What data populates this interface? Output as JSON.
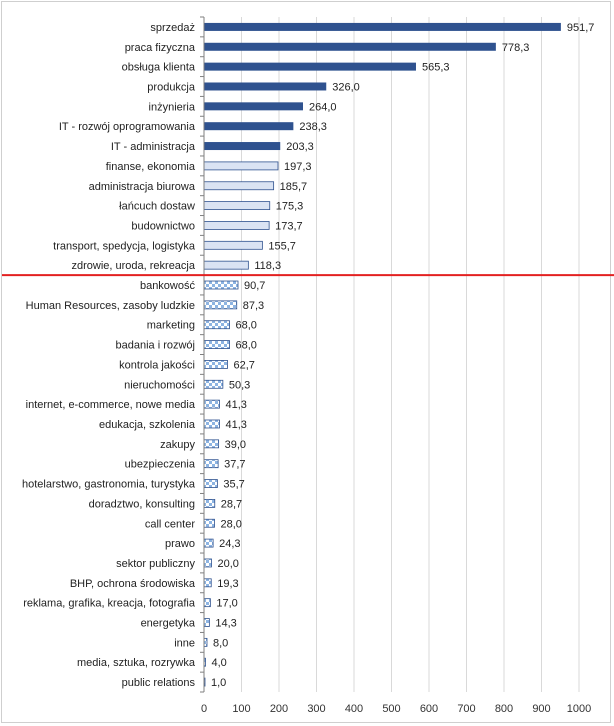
{
  "chart_data": {
    "type": "bar",
    "orientation": "horizontal",
    "categories": [
      "sprzedaż",
      "praca fizyczna",
      "obsługa klienta",
      "produkcja",
      "inżynieria",
      "IT - rozwój oprogramowania",
      "IT - administracja",
      "finanse, ekonomia",
      "administracja biurowa",
      "łańcuch dostaw",
      "budownictwo",
      "transport, spedycja, logistyka",
      "zdrowie, uroda, rekreacja",
      "bankowość",
      "Human Resources, zasoby ludzkie",
      "marketing",
      "badania i rozwój",
      "kontrola jakości",
      "nieruchomości",
      "internet, e-commerce, nowe media",
      "edukacja, szkolenia",
      "zakupy",
      "ubezpieczenia",
      "hotelarstwo, gastronomia, turystyka",
      "doradztwo, konsulting",
      "call center",
      "prawo",
      "sektor publiczny",
      "BHP, ochrona środowiska",
      "reklama, grafika, kreacja, fotografia",
      "energetyka",
      "inne",
      "media, sztuka, rozrywka",
      "public relations"
    ],
    "values": [
      951.7,
      778.3,
      565.3,
      326.0,
      264.0,
      238.3,
      203.3,
      197.3,
      185.7,
      175.3,
      173.7,
      155.7,
      118.3,
      90.7,
      87.3,
      68.0,
      68.0,
      62.7,
      50.3,
      41.3,
      41.3,
      39.0,
      37.7,
      35.7,
      28.7,
      28.0,
      24.3,
      20.0,
      19.3,
      17.0,
      14.3,
      8.0,
      4.0,
      1.0
    ],
    "value_labels": [
      "951,7",
      "778,3",
      "565,3",
      "326,0",
      "264,0",
      "238,3",
      "203,3",
      "197,3",
      "185,7",
      "175,3",
      "173,7",
      "155,7",
      "118,3",
      "90,7",
      "87,3",
      "68,0",
      "68,0",
      "62,7",
      "50,3",
      "41,3",
      "41,3",
      "39,0",
      "37,7",
      "35,7",
      "28,7",
      "28,0",
      "24,3",
      "20,0",
      "19,3",
      "17,0",
      "14,3",
      "8,0",
      "4,0",
      "1,0"
    ],
    "groups": [
      {
        "fill": "solid",
        "color": "#2f528f",
        "from": 0,
        "to": 6
      },
      {
        "fill": "light",
        "color": "#dae3f3",
        "border": "#2f528f",
        "from": 7,
        "to": 12
      },
      {
        "fill": "checkered",
        "color": "#9dc3e6",
        "border": "#2f528f",
        "from": 13,
        "to": 33
      }
    ],
    "xlim": [
      0,
      1000
    ],
    "x_ticks": [
      0,
      100,
      200,
      300,
      400,
      500,
      600,
      700,
      800,
      900,
      1000
    ],
    "grid": true,
    "reference_line": {
      "color": "#e32020",
      "between_categories": [
        "zdrowie, uroda, rekreacja",
        "bankowość"
      ]
    },
    "title": "",
    "xlabel": "",
    "ylabel": ""
  }
}
